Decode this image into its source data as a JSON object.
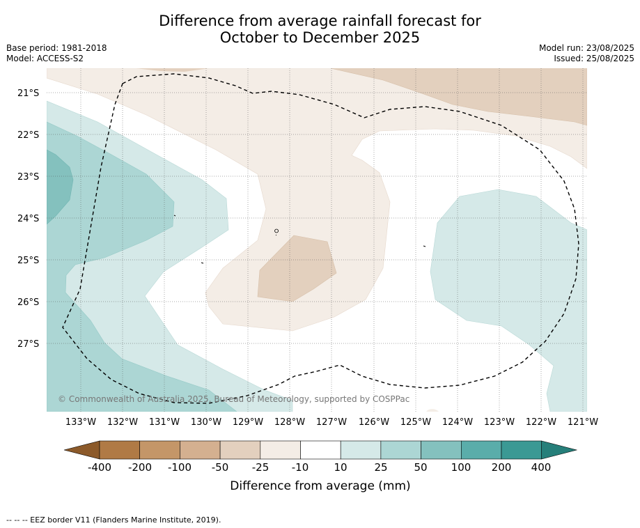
{
  "title_line1": "Difference from average rainfall forecast for",
  "title_line2": "October to December 2025",
  "base_period": "Base period: 1981-2018",
  "model": "Model: ACCESS-S2",
  "model_run": "Model run: 23/08/2025",
  "issued": "Issued: 25/08/2025",
  "lat_labels": [
    "21°S",
    "22°S",
    "23°S",
    "24°S",
    "25°S",
    "26°S",
    "27°S"
  ],
  "lon_labels": [
    "133°W",
    "132°W",
    "131°W",
    "130°W",
    "129°W",
    "128°W",
    "127°W",
    "126°W",
    "125°W",
    "124°W",
    "123°W",
    "122°W",
    "121°W"
  ],
  "copyright": "© Commonwealth of Australia 2025, Bureau of Meteorology, supported by COSPPac",
  "colorbar": {
    "labels": [
      "-400",
      "-200",
      "-100",
      "-50",
      "-25",
      "-10",
      "10",
      "25",
      "50",
      "100",
      "200",
      "400"
    ],
    "colors": [
      "#8c5a2a",
      "#b07a45",
      "#c49668",
      "#d4b090",
      "#e3d0be",
      "#f4ede6",
      "#ffffff",
      "#d5e9e8",
      "#acd6d4",
      "#84c1be",
      "#5aadaa",
      "#3b9994",
      "#267f7a"
    ],
    "title": "Difference from average (mm)"
  },
  "footnote": "--  --  -- EEZ border V11 (Flanders Marine Institute, 2019)."
}
